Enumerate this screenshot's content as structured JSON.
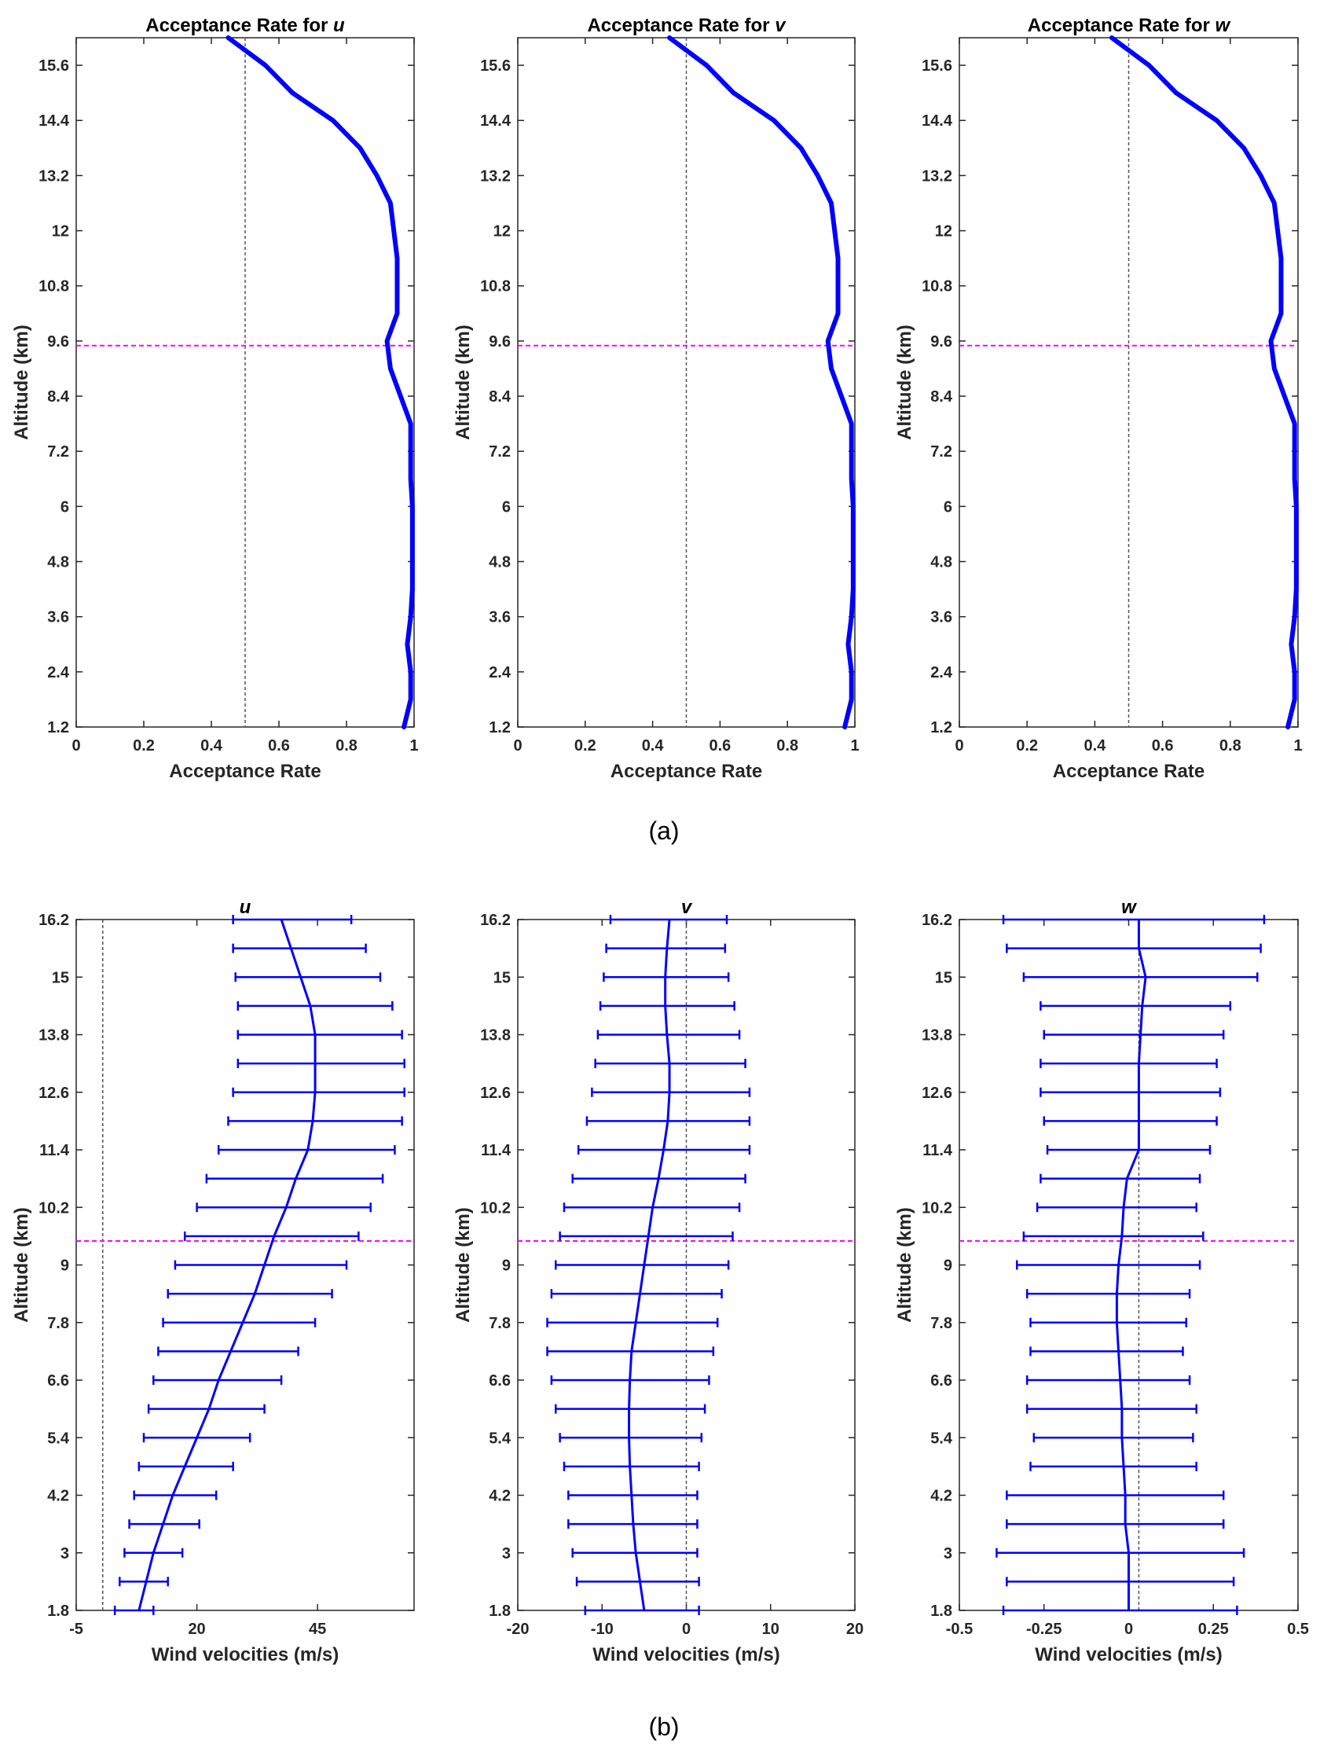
{
  "colors": {
    "series": "#0000ff",
    "reference_line": "#ff00ff",
    "center_line": "#555555",
    "axis": "#262626"
  },
  "panels": {
    "a": {
      "caption": "(a)"
    },
    "b": {
      "caption": "(b)"
    }
  },
  "chart_data": [
    {
      "id": "acc-u",
      "type": "line",
      "panel": "a",
      "title": "Acceptance Rate for ",
      "title_var": "u",
      "xlabel": "Acceptance Rate",
      "ylabel": "Altitude (km)",
      "xlim": [
        0,
        1
      ],
      "ylim": [
        1.2,
        16.2
      ],
      "xticks": [
        "0",
        "0.2",
        "0.4",
        "0.6",
        "0.8",
        "1"
      ],
      "yticks": [
        "1.2",
        "2.4",
        "3.6",
        "4.8",
        "6",
        "7.2",
        "8.4",
        "9.6",
        "10.8",
        "12",
        "13.2",
        "14.4",
        "15.6"
      ],
      "vline": 0.5,
      "hline": 9.5,
      "altitude": [
        1.2,
        1.8,
        2.4,
        3.0,
        3.6,
        4.2,
        4.8,
        5.4,
        6.0,
        6.6,
        7.2,
        7.8,
        8.4,
        9.0,
        9.6,
        10.2,
        10.8,
        11.4,
        12.0,
        12.6,
        13.2,
        13.8,
        14.4,
        15.0,
        15.6,
        16.2
      ],
      "values": [
        0.97,
        0.99,
        0.99,
        0.98,
        0.99,
        0.995,
        0.995,
        0.995,
        0.995,
        0.99,
        0.99,
        0.99,
        0.96,
        0.93,
        0.92,
        0.95,
        0.95,
        0.95,
        0.94,
        0.93,
        0.89,
        0.84,
        0.76,
        0.64,
        0.56,
        0.45
      ]
    },
    {
      "id": "acc-v",
      "type": "line",
      "panel": "a",
      "title": "Acceptance Rate for ",
      "title_var": "v",
      "xlabel": "Acceptance Rate",
      "ylabel": "Altitude (km)",
      "xlim": [
        0,
        1
      ],
      "ylim": [
        1.2,
        16.2
      ],
      "xticks": [
        "0",
        "0.2",
        "0.4",
        "0.6",
        "0.8",
        "1"
      ],
      "yticks": [
        "1.2",
        "2.4",
        "3.6",
        "4.8",
        "6",
        "7.2",
        "8.4",
        "9.6",
        "10.8",
        "12",
        "13.2",
        "14.4",
        "15.6"
      ],
      "vline": 0.5,
      "hline": 9.5,
      "altitude": [
        1.2,
        1.8,
        2.4,
        3.0,
        3.6,
        4.2,
        4.8,
        5.4,
        6.0,
        6.6,
        7.2,
        7.8,
        8.4,
        9.0,
        9.6,
        10.2,
        10.8,
        11.4,
        12.0,
        12.6,
        13.2,
        13.8,
        14.4,
        15.0,
        15.6,
        16.2
      ],
      "values": [
        0.97,
        0.99,
        0.99,
        0.98,
        0.99,
        0.995,
        0.995,
        0.995,
        0.995,
        0.99,
        0.99,
        0.99,
        0.96,
        0.93,
        0.92,
        0.95,
        0.95,
        0.95,
        0.94,
        0.93,
        0.89,
        0.84,
        0.76,
        0.64,
        0.56,
        0.45
      ]
    },
    {
      "id": "acc-w",
      "type": "line",
      "panel": "a",
      "title": "Acceptance Rate for ",
      "title_var": "w",
      "xlabel": "Acceptance Rate",
      "ylabel": "Altitude (km)",
      "xlim": [
        0,
        1
      ],
      "ylim": [
        1.2,
        16.2
      ],
      "xticks": [
        "0",
        "0.2",
        "0.4",
        "0.6",
        "0.8",
        "1"
      ],
      "yticks": [
        "1.2",
        "2.4",
        "3.6",
        "4.8",
        "6",
        "7.2",
        "8.4",
        "9.6",
        "10.8",
        "12",
        "13.2",
        "14.4",
        "15.6"
      ],
      "vline": 0.5,
      "hline": 9.5,
      "altitude": [
        1.2,
        1.8,
        2.4,
        3.0,
        3.6,
        4.2,
        4.8,
        5.4,
        6.0,
        6.6,
        7.2,
        7.8,
        8.4,
        9.0,
        9.6,
        10.2,
        10.8,
        11.4,
        12.0,
        12.6,
        13.2,
        13.8,
        14.4,
        15.0,
        15.6,
        16.2
      ],
      "values": [
        0.97,
        0.99,
        0.99,
        0.98,
        0.99,
        0.995,
        0.995,
        0.995,
        0.995,
        0.99,
        0.99,
        0.99,
        0.96,
        0.93,
        0.92,
        0.95,
        0.95,
        0.95,
        0.94,
        0.93,
        0.89,
        0.84,
        0.76,
        0.64,
        0.56,
        0.45
      ]
    },
    {
      "id": "wind-u",
      "type": "errorbar",
      "panel": "b",
      "title": "",
      "title_var": "u",
      "xlabel": "Wind velocities (m/s)",
      "ylabel": "Altitude (km)",
      "xlim": [
        -5,
        65
      ],
      "ylim": [
        1.8,
        16.2
      ],
      "xticks": [
        -5,
        20,
        45
      ],
      "xtick_labels": [
        "-5",
        "20",
        "45"
      ],
      "yticks": [
        "1.8",
        "3",
        "4.2",
        "5.4",
        "6.6",
        "7.8",
        "9",
        "10.2",
        "11.4",
        "12.6",
        "13.8",
        "15",
        "16.2"
      ],
      "vline": 0.5,
      "hline": 9.5,
      "altitude": [
        1.8,
        2.4,
        3.0,
        3.6,
        4.2,
        4.8,
        5.4,
        6.0,
        6.6,
        7.2,
        7.8,
        8.4,
        9.0,
        9.6,
        10.2,
        10.8,
        11.4,
        12.0,
        12.6,
        13.2,
        13.8,
        14.4,
        15.0,
        15.6,
        16.2
      ],
      "mean": [
        8,
        9.5,
        11,
        13,
        15,
        17.5,
        20,
        22.5,
        24.5,
        27,
        29.5,
        32,
        34,
        36,
        38.5,
        40.5,
        43,
        44,
        44.5,
        44.5,
        44.5,
        43.5,
        41.5,
        39.5,
        37.5
      ],
      "lower": [
        3,
        4,
        5,
        6,
        7,
        8,
        9,
        10,
        11,
        12,
        13,
        14,
        15.5,
        17.5,
        20,
        22,
        24.5,
        26.5,
        27.5,
        28.5,
        28.5,
        28.5,
        28,
        27.5,
        27.5
      ],
      "upper": [
        11,
        14,
        17,
        20.5,
        24,
        27.5,
        31,
        34,
        37.5,
        41,
        44.5,
        48,
        51,
        53.5,
        56,
        58.5,
        61,
        62.5,
        63,
        63,
        62.5,
        60.5,
        58,
        55,
        52
      ]
    },
    {
      "id": "wind-v",
      "type": "errorbar",
      "panel": "b",
      "title": "",
      "title_var": "v",
      "xlabel": "Wind velocities (m/s)",
      "ylabel": "Altitude (km)",
      "xlim": [
        -20,
        20
      ],
      "ylim": [
        1.8,
        16.2
      ],
      "xticks": [
        -20,
        -10,
        0,
        10,
        20
      ],
      "xtick_labels": [
        "-20",
        "-10",
        "0",
        "10",
        "20"
      ],
      "yticks": [
        "1.8",
        "3",
        "4.2",
        "5.4",
        "6.6",
        "7.8",
        "9",
        "10.2",
        "11.4",
        "12.6",
        "13.8",
        "15",
        "16.2"
      ],
      "vline": 0,
      "hline": 9.5,
      "altitude": [
        1.8,
        2.4,
        3.0,
        3.6,
        4.2,
        4.8,
        5.4,
        6.0,
        6.6,
        7.2,
        7.8,
        8.4,
        9.0,
        9.6,
        10.2,
        10.8,
        11.4,
        12.0,
        12.6,
        13.2,
        13.8,
        14.4,
        15.0,
        15.6,
        16.2
      ],
      "mean": [
        -5,
        -5.5,
        -6,
        -6.3,
        -6.5,
        -6.7,
        -6.8,
        -6.8,
        -6.7,
        -6.5,
        -6,
        -5.5,
        -5,
        -4.5,
        -4,
        -3.3,
        -2.7,
        -2.2,
        -2,
        -2,
        -2.3,
        -2.5,
        -2.5,
        -2.3,
        -2
      ],
      "lower": [
        -12,
        -13,
        -13.5,
        -14,
        -14,
        -14.5,
        -15,
        -15.5,
        -16,
        -16.5,
        -16.5,
        -16,
        -15.5,
        -15,
        -14.5,
        -13.5,
        -12.8,
        -11.8,
        -11.2,
        -10.8,
        -10.5,
        -10.2,
        -9.8,
        -9.5,
        -9
      ],
      "upper": [
        1.5,
        1.5,
        1.3,
        1.3,
        1.3,
        1.5,
        1.8,
        2.2,
        2.7,
        3.2,
        3.7,
        4.2,
        5,
        5.5,
        6.3,
        7,
        7.5,
        7.5,
        7.5,
        7,
        6.3,
        5.7,
        5,
        4.6,
        4.8
      ]
    },
    {
      "id": "wind-w",
      "type": "errorbar",
      "panel": "b",
      "title": "",
      "title_var": "w",
      "xlabel": "Wind velocities (m/s)",
      "ylabel": "Altitude (km)",
      "xlim": [
        -0.5,
        0.5
      ],
      "ylim": [
        1.8,
        16.2
      ],
      "xticks": [
        -0.5,
        -0.25,
        0,
        0.25,
        0.5
      ],
      "xtick_labels": [
        "-0.5",
        "-0.25",
        "0",
        "0.25",
        "0.5"
      ],
      "yticks": [
        "1.8",
        "3",
        "4.2",
        "5.4",
        "6.6",
        "7.8",
        "9",
        "10.2",
        "11.4",
        "12.6",
        "13.8",
        "15",
        "16.2"
      ],
      "vline": 0.03,
      "hline": 9.5,
      "altitude": [
        1.8,
        2.4,
        3.0,
        3.6,
        4.2,
        4.8,
        5.4,
        6.0,
        6.6,
        7.2,
        7.8,
        8.4,
        9.0,
        9.6,
        10.2,
        10.8,
        11.4,
        12.0,
        12.6,
        13.2,
        13.8,
        14.4,
        15.0,
        15.6,
        16.2
      ],
      "mean": [
        0,
        0,
        0,
        -0.01,
        -0.01,
        -0.015,
        -0.02,
        -0.02,
        -0.025,
        -0.03,
        -0.035,
        -0.035,
        -0.03,
        -0.02,
        -0.015,
        -0.005,
        0.03,
        0.03,
        0.03,
        0.03,
        0.035,
        0.04,
        0.05,
        0.03,
        0.03
      ],
      "lower": [
        -0.37,
        -0.36,
        -0.39,
        -0.36,
        -0.36,
        -0.29,
        -0.28,
        -0.3,
        -0.3,
        -0.29,
        -0.29,
        -0.3,
        -0.33,
        -0.31,
        -0.27,
        -0.26,
        -0.24,
        -0.25,
        -0.26,
        -0.26,
        -0.25,
        -0.26,
        -0.31,
        -0.36,
        -0.37
      ],
      "upper": [
        0.32,
        0.31,
        0.34,
        0.28,
        0.28,
        0.2,
        0.19,
        0.2,
        0.18,
        0.16,
        0.17,
        0.18,
        0.21,
        0.22,
        0.2,
        0.21,
        0.24,
        0.26,
        0.27,
        0.26,
        0.28,
        0.3,
        0.38,
        0.39,
        0.4
      ]
    }
  ]
}
